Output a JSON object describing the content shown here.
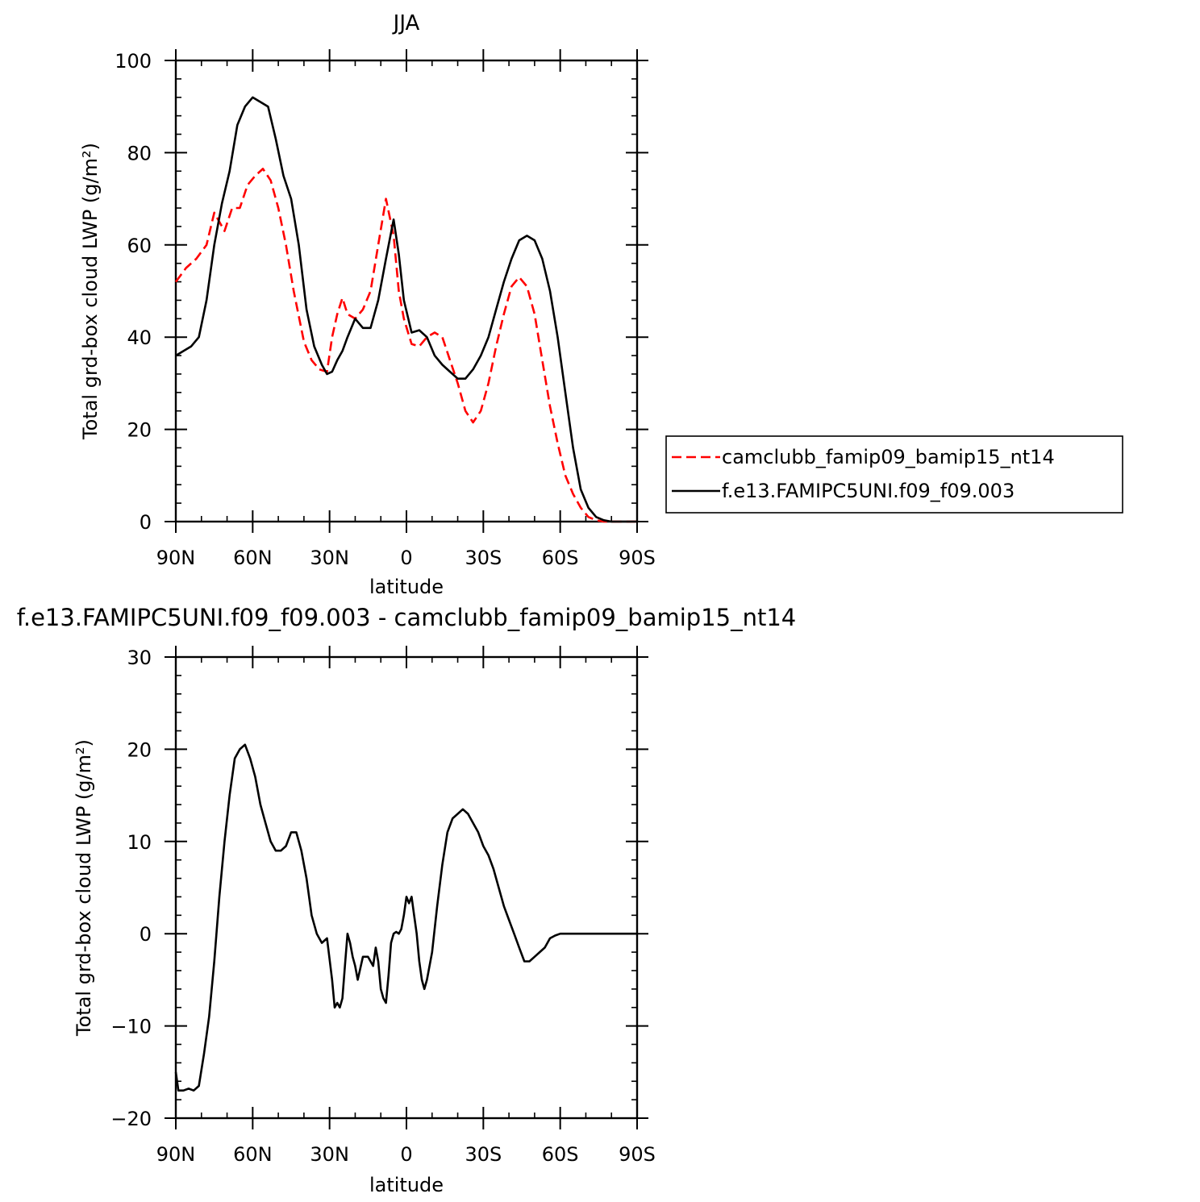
{
  "colors": {
    "model_a": "#ff0000",
    "model_b": "#000000",
    "axis": "#000000"
  },
  "top_title": "JJA",
  "diff_title": "f.e13.FAMIPC5UNI.f09_f09.003 - camclubb_famip09_bamip15_nt14",
  "legend": {
    "entries": [
      "camclubb_famip09_bamip15_nt14",
      "f.e13.FAMIPC5UNI.f09_f09.003"
    ]
  },
  "x_tick_labels": [
    "90N",
    "60N",
    "30N",
    "0",
    "30S",
    "60S",
    "90S"
  ],
  "chart_data": [
    {
      "type": "line",
      "title": "JJA",
      "xlabel": "latitude",
      "ylabel": "Total grd-box cloud LWP (g/m²)",
      "xlim": [
        -90,
        90
      ],
      "ylim": [
        0,
        100
      ],
      "y_ticks": [
        0,
        20,
        40,
        60,
        80,
        100
      ],
      "legend_position": "right",
      "series": [
        {
          "name": "camclubb_famip09_bamip15_nt14",
          "style": "dashed",
          "x": [
            -90,
            -86,
            -82,
            -78,
            -75,
            -71,
            -68,
            -65,
            -62,
            -59,
            -56,
            -53,
            -50,
            -47,
            -44,
            -40,
            -37,
            -34,
            -31,
            -29,
            -27,
            -25,
            -23,
            -20,
            -17,
            -14,
            -11,
            -8,
            -5,
            -3,
            -1,
            2,
            5,
            8,
            11,
            14,
            17,
            20,
            23,
            26,
            29,
            32,
            35,
            38,
            41,
            44,
            47,
            50,
            53,
            56,
            59,
            62,
            65,
            68,
            71,
            74,
            77,
            80,
            83,
            86,
            90
          ],
          "y": [
            52,
            55,
            57,
            60,
            67,
            63,
            68,
            68,
            73,
            75,
            76.5,
            74,
            68,
            60,
            50,
            39,
            35,
            33,
            32.5,
            40,
            45,
            48.5,
            45,
            44,
            46,
            50,
            60,
            70,
            62,
            50,
            44,
            38.5,
            38,
            40,
            41,
            40,
            35,
            30,
            24,
            21.5,
            24,
            30,
            38,
            45,
            51,
            53,
            51,
            45,
            35,
            25,
            17,
            10,
            6,
            3,
            1,
            0.3,
            0,
            0,
            0,
            0,
            0
          ]
        },
        {
          "name": "f.e13.FAMIPC5UNI.f09_f09.003",
          "style": "solid",
          "x": [
            -90,
            -87,
            -84,
            -81,
            -78,
            -75,
            -72,
            -69,
            -66,
            -63,
            -60,
            -57,
            -54,
            -51,
            -48,
            -45,
            -42,
            -39,
            -36,
            -33,
            -31,
            -29,
            -27,
            -25,
            -23,
            -20,
            -17,
            -14,
            -11,
            -8,
            -5,
            -3,
            -1,
            2,
            5,
            8,
            11,
            14,
            17,
            20,
            23,
            26,
            29,
            32,
            35,
            38,
            41,
            44,
            47,
            50,
            53,
            56,
            59,
            62,
            65,
            68,
            71,
            74,
            77,
            80,
            83,
            86,
            90
          ],
          "y": [
            36,
            37,
            38,
            40,
            48,
            60,
            69,
            76,
            86,
            90,
            92,
            91,
            90,
            83,
            75,
            70,
            60,
            46,
            38,
            34,
            32,
            32.5,
            35,
            37,
            40,
            44,
            42,
            42,
            48,
            57,
            65.5,
            58,
            48,
            41,
            41.5,
            40,
            36,
            34,
            32.5,
            31,
            31,
            33,
            36,
            40,
            46,
            52,
            57,
            61,
            62,
            61,
            57,
            50,
            40,
            28,
            16,
            7,
            3,
            1,
            0.3,
            0,
            0,
            0,
            0
          ]
        }
      ]
    },
    {
      "type": "line",
      "title": "f.e13.FAMIPC5UNI.f09_f09.003 - camclubb_famip09_bamip15_nt14",
      "xlabel": "latitude",
      "ylabel": "Total grd-box cloud LWP (g/m²)",
      "xlim": [
        -90,
        90
      ],
      "ylim": [
        -20,
        30
      ],
      "y_ticks": [
        -20,
        -10,
        0,
        10,
        20,
        30
      ],
      "series": [
        {
          "style": "solid",
          "x": [
            -90,
            -89,
            -87,
            -85,
            -83,
            -81,
            -79,
            -77,
            -75,
            -73,
            -71,
            -69,
            -67,
            -65,
            -63,
            -61,
            -59,
            -57,
            -55,
            -53,
            -51,
            -49,
            -47,
            -45,
            -43,
            -41,
            -39,
            -37,
            -35,
            -33,
            -31,
            -29,
            -28,
            -27,
            -26,
            -25,
            -24,
            -23,
            -22,
            -21,
            -20,
            -19,
            -17,
            -15,
            -13,
            -12,
            -11,
            -10,
            -9,
            -8,
            -7,
            -6,
            -5,
            -4,
            -3,
            -2,
            -1,
            0,
            1,
            2,
            3,
            4,
            5,
            6,
            7,
            8,
            10,
            12,
            14,
            16,
            18,
            20,
            22,
            24,
            26,
            28,
            30,
            32,
            34,
            36,
            38,
            40,
            42,
            44,
            46,
            48,
            50,
            52,
            54,
            56,
            58,
            60,
            62,
            64,
            66,
            68,
            70,
            72,
            74,
            76,
            78,
            80,
            84,
            88,
            90
          ],
          "y": [
            -15,
            -17,
            -17,
            -16.8,
            -17,
            -16.5,
            -13,
            -9,
            -3,
            4,
            10,
            15,
            19,
            20,
            20.5,
            19,
            17,
            14,
            12,
            10,
            9,
            9,
            9.5,
            11,
            11,
            9,
            6,
            2,
            0,
            -1,
            -0.5,
            -5,
            -8,
            -7.5,
            -8,
            -7,
            -3.5,
            0,
            -1,
            -2.5,
            -3.5,
            -5,
            -2.5,
            -2.5,
            -3.5,
            -1.5,
            -3,
            -6,
            -7,
            -7.5,
            -4.5,
            -1,
            0,
            0.2,
            0,
            0.5,
            2,
            4,
            3.3,
            4,
            2,
            0,
            -3,
            -5,
            -6,
            -5,
            -2,
            3,
            7.5,
            11,
            12.5,
            13,
            13.5,
            13,
            12,
            11,
            9.5,
            8.5,
            7,
            5,
            3,
            1.5,
            0,
            -1.5,
            -3,
            -3,
            -2.5,
            -2,
            -1.5,
            -0.5,
            -0.2,
            0,
            0,
            0,
            0,
            0,
            0,
            0,
            0,
            0,
            0,
            0,
            0,
            0,
            0
          ]
        }
      ]
    }
  ]
}
